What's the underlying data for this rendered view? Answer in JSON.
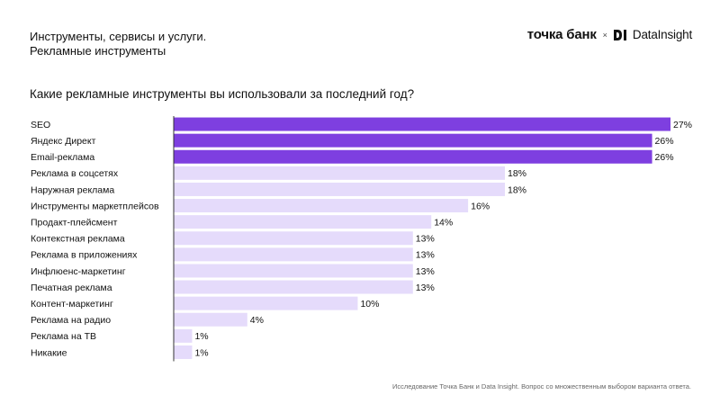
{
  "header": {
    "title_line1": "Инструменты, сервисы и услуги.",
    "title_line2": "Рекламные инструменты"
  },
  "brand": {
    "tochka": "точка банк",
    "separator": "×",
    "datainsight_logo_icon": "di-logo-icon",
    "datainsight": "DataInsight"
  },
  "question": "Какие рекламные инструменты вы использовали за последний год?",
  "footnote": "Исследование Точка Банк и Data Insight. Вопрос со множественным выбором варианта ответа.",
  "colors": {
    "highlight": "#7e3fe0",
    "normal": "#e5dbfb",
    "axis": "#333333"
  },
  "chart_data": {
    "type": "bar",
    "orientation": "horizontal",
    "title": "Какие рекламные инструменты вы использовали за последний год?",
    "categories": [
      "SEO",
      "Яндекс Директ",
      "Email-реклама",
      "Реклама в соцсетях",
      "Наружная реклама",
      "Инструменты маркетплейсов",
      "Продакт-плейсмент",
      "Контекстная реклама",
      "Реклама в приложениях",
      "Инфлюенс-маркетинг",
      "Печатная реклама",
      "Контент-маркетинг",
      "Реклама на радио",
      "Реклама на ТВ",
      "Никакие"
    ],
    "values": [
      27,
      26,
      26,
      18,
      18,
      16,
      14,
      13,
      13,
      13,
      13,
      10,
      4,
      1,
      1
    ],
    "value_labels": [
      "27%",
      "26%",
      "26%",
      "18%",
      "18%",
      "16%",
      "14%",
      "13%",
      "13%",
      "13%",
      "13%",
      "10%",
      "4%",
      "1%",
      "1%"
    ],
    "highlighted": [
      true,
      true,
      true,
      false,
      false,
      false,
      false,
      false,
      false,
      false,
      false,
      false,
      false,
      false,
      false
    ],
    "unit": "%",
    "xlim": [
      0,
      27
    ],
    "grid": false
  }
}
